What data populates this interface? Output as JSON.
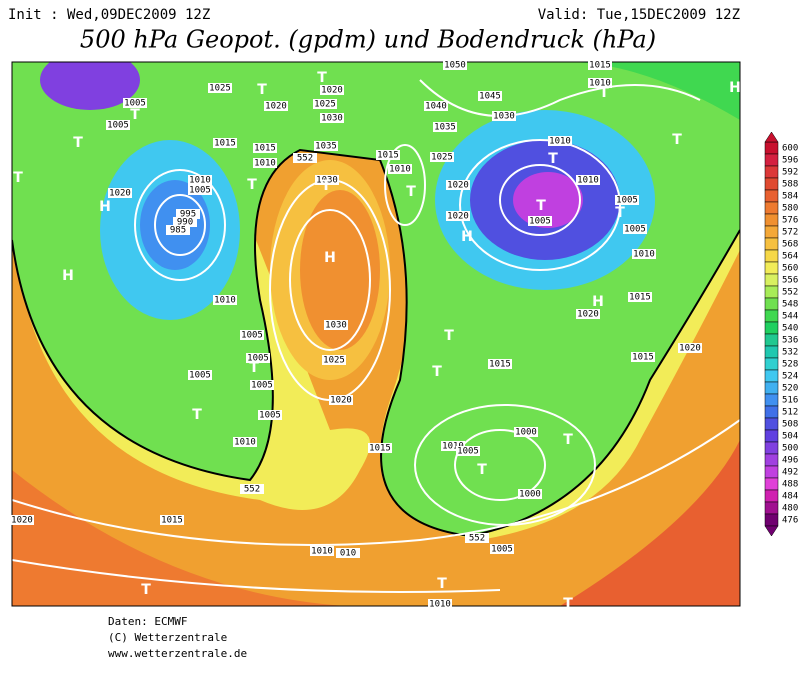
{
  "header": {
    "init": "Init : Wed,09DEC2009 12Z",
    "valid": "Valid: Tue,15DEC2009 12Z",
    "title": "500 hPa Geopot. (gpdm) und Bodendruck (hPa)"
  },
  "colorbar": {
    "values": [
      600,
      596,
      592,
      588,
      584,
      580,
      576,
      572,
      568,
      564,
      560,
      556,
      552,
      548,
      544,
      540,
      536,
      532,
      528,
      524,
      520,
      516,
      512,
      508,
      504,
      500,
      496,
      492,
      488,
      484,
      480,
      476
    ],
    "colors": [
      "#c8102e",
      "#d42040",
      "#dc3838",
      "#e04a30",
      "#e86030",
      "#ee7a30",
      "#f09030",
      "#f4a838",
      "#f6c040",
      "#f6d848",
      "#f2ec58",
      "#d8f060",
      "#a8ec58",
      "#70e050",
      "#40d850",
      "#20d060",
      "#20c890",
      "#20c8b0",
      "#30d0d0",
      "#40c8f0",
      "#40b0f0",
      "#4090f0",
      "#4070e8",
      "#5050e0",
      "#6040e0",
      "#8040e0",
      "#a040e0",
      "#c040e0",
      "#e040d8",
      "#d020b0",
      "#a01090",
      "#700070"
    ]
  },
  "isobars": [
    "1005",
    "1005",
    "1025",
    "1020",
    "1025",
    "1020",
    "1030",
    "1015",
    "1015",
    "1010",
    "1010",
    "1005",
    "1020",
    "995",
    "990",
    "985",
    "1035",
    "1030",
    "1015",
    "1010",
    "1025",
    "1040",
    "1035",
    "1045",
    "1030",
    "1050",
    "1010",
    "1015",
    "1010",
    "1010",
    "1005",
    "1005",
    "1005",
    "1010",
    "1015",
    "1020",
    "1020",
    "1020",
    "1010",
    "1030",
    "1025",
    "1020",
    "1005",
    "1005",
    "1005",
    "1005",
    "1005",
    "1010",
    "1015",
    "1015",
    "1020",
    "1015",
    "1010",
    "1005",
    "1000",
    "1000",
    "1005",
    "1015",
    "1020",
    "1010",
    "010",
    "1010",
    "552",
    "552",
    "552"
  ],
  "centers": [
    "T",
    "T",
    "T",
    "H",
    "H",
    "T",
    "T",
    "T",
    "T",
    "H",
    "T",
    "H",
    "T",
    "T",
    "T",
    "T",
    "T",
    "H",
    "H",
    "T",
    "T",
    "T",
    "T",
    "T",
    "T",
    "T",
    "T",
    "T"
  ],
  "footer": [
    "Daten: ECMWF",
    "(C) Wetterzentrale",
    "www.wetterzentrale.de"
  ]
}
